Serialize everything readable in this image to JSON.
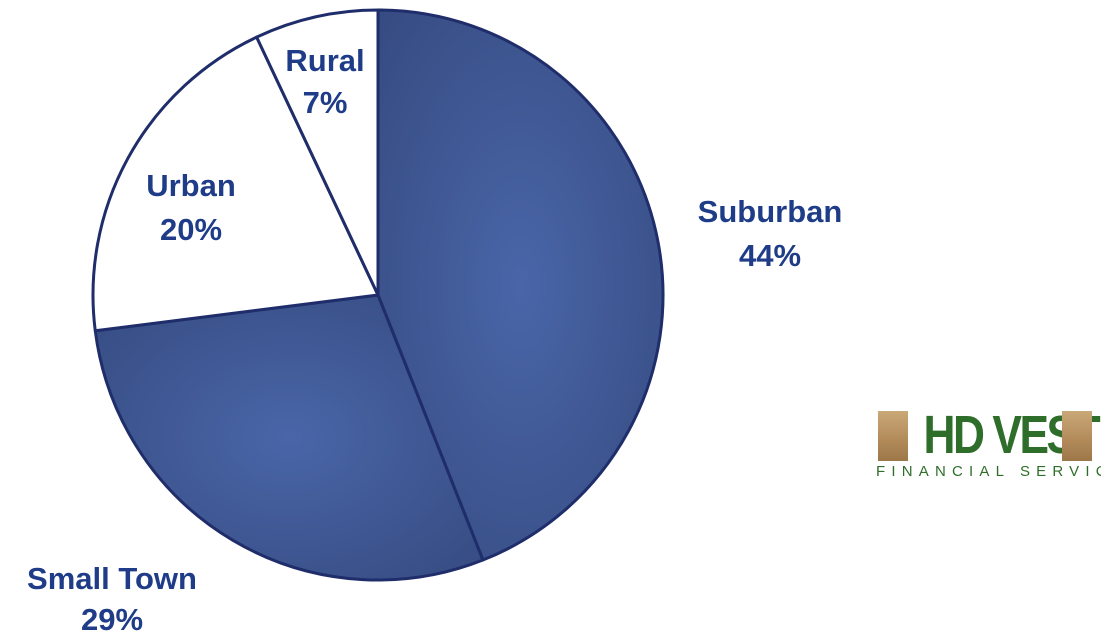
{
  "chart_data": {
    "type": "pie",
    "slices": [
      {
        "label": "Suburban",
        "value_label": "44%",
        "value": 44,
        "color": "#3f5a96"
      },
      {
        "label": "Small Town",
        "value_label": "29%",
        "value": 29,
        "color": "#3f5a96"
      },
      {
        "label": "Urban",
        "value_label": "20%",
        "value": 20,
        "color": "#ffffff"
      },
      {
        "label": "Rural",
        "value_label": "7%",
        "value": 7,
        "color": "#ffffff"
      }
    ],
    "start_angle": "12 o'clock",
    "direction": "clockwise",
    "colors": {
      "outline": "#1f2d6b",
      "label_text": "#1f3c88",
      "filled_dark": "#34497e",
      "filled_light": "#4a66a8"
    }
  },
  "logo": {
    "word": "HD VEST",
    "subtitle": "FINANCIAL SERVICES",
    "colors": {
      "word": "#2f6e2a",
      "bars": "#b48c5c"
    }
  }
}
